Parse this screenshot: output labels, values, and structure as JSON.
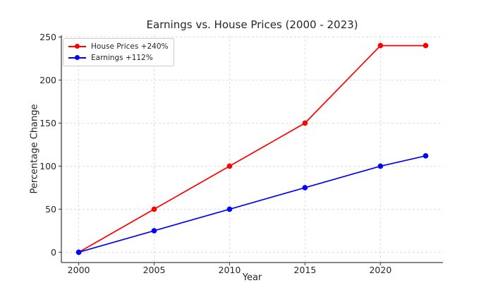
{
  "chart_data": {
    "type": "line",
    "title": "Earnings vs. House Prices (2000 - 2023)",
    "xlabel": "Year",
    "ylabel": "Percentage Change",
    "x": [
      2000,
      2005,
      2010,
      2015,
      2020,
      2023
    ],
    "series": [
      {
        "name": "House Prices +240%",
        "color": "#ff0000",
        "values": [
          0,
          50,
          100,
          150,
          240,
          240
        ]
      },
      {
        "name": "Earnings +112%",
        "color": "#0000ff",
        "values": [
          0,
          25,
          50,
          75,
          100,
          112
        ]
      }
    ],
    "xticks": [
      2000,
      2005,
      2010,
      2015,
      2020
    ],
    "xtick_labels": [
      "2000",
      "2005",
      "2010",
      "2015",
      "2020"
    ],
    "yticks": [
      0,
      50,
      100,
      150,
      200,
      250
    ],
    "ytick_labels": [
      "0",
      "50",
      "100",
      "150",
      "200",
      "250"
    ],
    "xlim": [
      1998.85,
      2024.15
    ],
    "ylim": [
      -12,
      252
    ],
    "grid": true,
    "grid_style": "dashed",
    "legend_position": "upper left",
    "colors": {
      "grid": "#d9d9d9",
      "spine": "#424242",
      "text": "#262626",
      "legend_border": "#cccccc",
      "legend_bg": "#ffffff"
    }
  }
}
